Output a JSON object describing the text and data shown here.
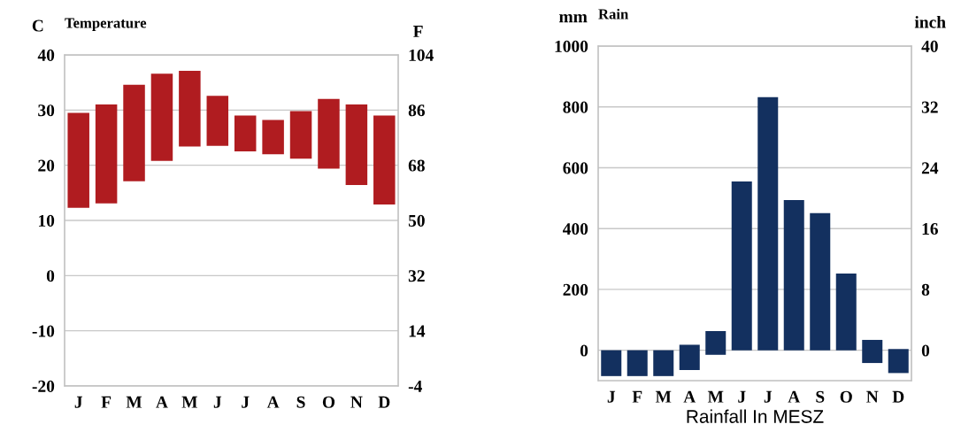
{
  "chart_data": [
    {
      "type": "bar",
      "title": "Temperature",
      "ylabel": "C",
      "y2label": "F",
      "categories": [
        "J",
        "F",
        "M",
        "A",
        "M",
        "J",
        "J",
        "A",
        "S",
        "O",
        "N",
        "D"
      ],
      "values": [
        17.2,
        17.9,
        17.5,
        15.8,
        13.7,
        9.1,
        6.5,
        6.2,
        8.6,
        12.6,
        14.6,
        16.1
      ],
      "base": [
        12.3,
        13.1,
        17.1,
        20.8,
        23.4,
        23.5,
        22.5,
        22,
        21.2,
        19.4,
        16.4,
        12.9
      ],
      "color": "#b01c20",
      "ylim": [
        -20,
        40
      ],
      "yticks": [
        -20,
        -10,
        0,
        10,
        20,
        30,
        40
      ],
      "y2lim": [
        -4,
        104
      ],
      "y2ticks": [
        -4,
        14,
        32,
        50,
        68,
        86,
        104
      ],
      "grid": "y",
      "legend": false
    },
    {
      "type": "bar",
      "title": "Rain",
      "ylabel": "mm",
      "y2label": "inch",
      "categories": [
        "J",
        "F",
        "M",
        "A",
        "M",
        "J",
        "J",
        "A",
        "S",
        "O",
        "N",
        "D"
      ],
      "values": [
        85,
        85,
        85,
        83,
        78,
        555,
        832,
        494,
        451,
        252,
        76,
        79
      ],
      "base": [
        -85,
        -85,
        -85,
        -65,
        -15,
        0,
        0,
        0,
        0,
        0,
        -42,
        -75
      ],
      "color": "#13305f",
      "ylim": [
        -100,
        1000
      ],
      "yticks": [
        0,
        200,
        400,
        600,
        800,
        1000
      ],
      "y2lim": [
        -4,
        40
      ],
      "y2ticks": [
        0,
        8,
        16,
        24,
        32,
        40
      ],
      "grid": "y",
      "legend": false,
      "annotations": [
        "Rainfall In MESZ"
      ]
    }
  ]
}
